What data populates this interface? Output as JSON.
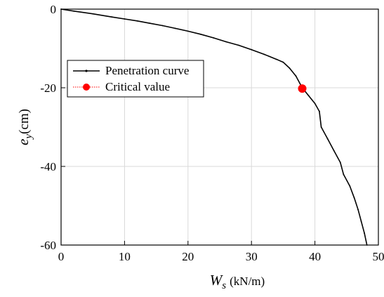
{
  "chart_data": {
    "type": "line",
    "xlabel": {
      "symbol": "W",
      "subscript": "s",
      "unit": "(kN/m)"
    },
    "ylabel": {
      "symbol": "e",
      "subscript": "y",
      "unit": "(cm)"
    },
    "xlim": [
      0,
      50
    ],
    "ylim": [
      -60,
      0
    ],
    "xticks": [
      0,
      10,
      20,
      30,
      40,
      50
    ],
    "yticks": [
      0,
      -20,
      -40,
      -60
    ],
    "grid": true,
    "legend_position": "upper-left",
    "series": [
      {
        "name": "Penetration curve",
        "color": "#000000",
        "style": "line-with-small-markers",
        "points": [
          [
            0,
            0
          ],
          [
            2,
            -0.5
          ],
          [
            5,
            -1.2
          ],
          [
            8,
            -2
          ],
          [
            10,
            -2.5
          ],
          [
            12,
            -3
          ],
          [
            14,
            -3.6
          ],
          [
            16,
            -4.2
          ],
          [
            18,
            -4.9
          ],
          [
            20,
            -5.6
          ],
          [
            22,
            -6.4
          ],
          [
            24,
            -7.3
          ],
          [
            26,
            -8.3
          ],
          [
            28,
            -9.2
          ],
          [
            30,
            -10.3
          ],
          [
            32,
            -11.5
          ],
          [
            34,
            -12.8
          ],
          [
            35,
            -13.5
          ],
          [
            36,
            -15
          ],
          [
            37,
            -17
          ],
          [
            38,
            -20
          ],
          [
            39,
            -22
          ],
          [
            40,
            -24
          ],
          [
            40.7,
            -26
          ],
          [
            41,
            -30
          ],
          [
            42,
            -33
          ],
          [
            43,
            -36
          ],
          [
            44,
            -39
          ],
          [
            44.5,
            -42
          ],
          [
            45.5,
            -45
          ],
          [
            46.2,
            -48
          ],
          [
            46.8,
            -51
          ],
          [
            47.3,
            -54
          ],
          [
            47.8,
            -57
          ],
          [
            48.2,
            -60
          ]
        ]
      },
      {
        "name": "Critical value",
        "color": "#ff0000",
        "style": "marker",
        "points": [
          [
            38,
            -20.2
          ]
        ]
      }
    ]
  }
}
